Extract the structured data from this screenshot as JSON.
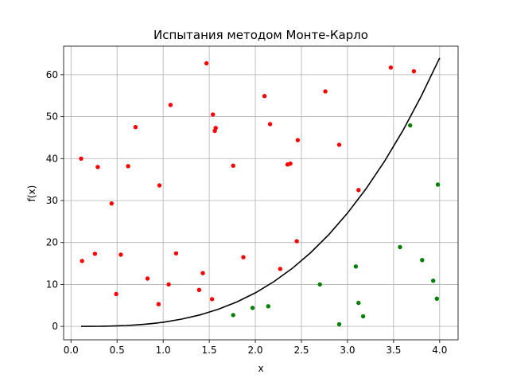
{
  "chart_data": {
    "type": "scatter",
    "title": "Испытания методом Монте-Карло",
    "xlabel": "x",
    "ylabel": "f(x)",
    "xlim": [
      -0.08,
      4.2
    ],
    "ylim": [
      -3.2,
      66.8
    ],
    "xticks": [
      0.0,
      0.5,
      1.0,
      1.5,
      2.0,
      2.5,
      3.0,
      3.5,
      4.0
    ],
    "xtick_labels": [
      "0.0",
      "0.5",
      "1.0",
      "1.5",
      "2.0",
      "2.5",
      "3.0",
      "3.5",
      "4.0"
    ],
    "yticks": [
      0,
      10,
      20,
      30,
      40,
      50,
      60
    ],
    "ytick_labels": [
      "0",
      "10",
      "20",
      "30",
      "40",
      "50",
      "60"
    ],
    "grid": true,
    "colors": {
      "above": "#ff0000",
      "below": "#008000",
      "curve": "#000000"
    },
    "curve": {
      "function": "x^3",
      "x": [
        0.11,
        0.2,
        0.3,
        0.4,
        0.5,
        0.6,
        0.7,
        0.8,
        0.9,
        1.0,
        1.2,
        1.4,
        1.6,
        1.8,
        2.0,
        2.2,
        2.4,
        2.6,
        2.8,
        3.0,
        3.2,
        3.4,
        3.6,
        3.8,
        4.0
      ],
      "y": [
        0.0,
        0.01,
        0.03,
        0.06,
        0.13,
        0.22,
        0.34,
        0.51,
        0.73,
        1.0,
        1.73,
        2.74,
        4.1,
        5.83,
        8.0,
        10.65,
        13.82,
        17.58,
        21.95,
        27.0,
        32.77,
        39.3,
        46.66,
        54.87,
        64.0
      ]
    },
    "series": [
      {
        "color": "#ff0000",
        "x": [
          0.11,
          0.12,
          0.26,
          0.29,
          0.44,
          0.49,
          0.54,
          0.62,
          0.7,
          0.83,
          0.95,
          0.96,
          1.06,
          1.08,
          1.14,
          1.39,
          1.43,
          1.47,
          1.53,
          1.54,
          1.56,
          1.57,
          1.76,
          1.87,
          2.1,
          2.16,
          2.27,
          2.35,
          2.38,
          2.45,
          2.46,
          2.76,
          2.91,
          3.12,
          3.47,
          3.72
        ],
        "y": [
          40.0,
          15.6,
          17.3,
          38.0,
          29.3,
          7.7,
          17.1,
          38.2,
          47.5,
          11.4,
          5.3,
          33.6,
          10.0,
          52.8,
          17.4,
          8.7,
          12.7,
          62.7,
          6.5,
          50.5,
          46.6,
          47.3,
          38.3,
          16.5,
          54.9,
          48.2,
          13.7,
          38.6,
          38.8,
          20.3,
          44.4,
          56.0,
          43.3,
          32.5,
          61.7,
          60.8
        ]
      },
      {
        "color": "#008000",
        "x": [
          1.76,
          1.97,
          2.14,
          2.7,
          2.91,
          3.09,
          3.12,
          3.17,
          3.57,
          3.68,
          3.81,
          3.93,
          3.97,
          3.98
        ],
        "y": [
          2.7,
          4.4,
          4.8,
          10.0,
          0.5,
          14.3,
          5.6,
          2.4,
          18.9,
          47.9,
          15.8,
          10.9,
          6.6,
          33.8
        ]
      }
    ]
  }
}
